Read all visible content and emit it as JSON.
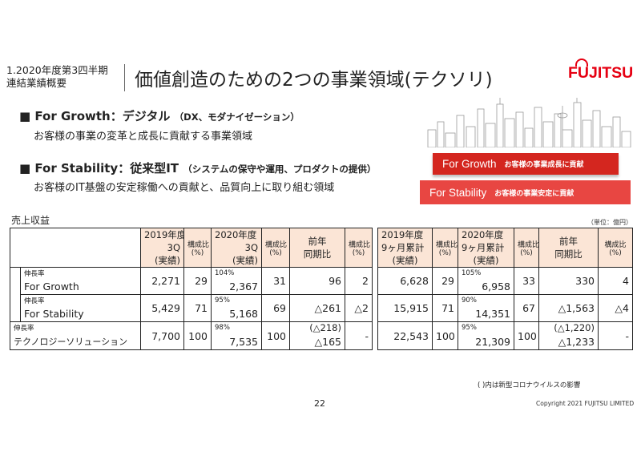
{
  "header": {
    "side_title_line1": "1.2020年度第3四半期",
    "side_title_line2": "連結業績概要",
    "main_title": "価値創造のための2つの事業領域(テクソリ)",
    "logo": "FUJITSU"
  },
  "growth": {
    "bullet": "■",
    "label": "For Growth：デジタル",
    "paren": "（DX、モダナイゼーション）",
    "desc": "お客様の事業の変革と成長に貢献する事業領域"
  },
  "stability": {
    "bullet": "■",
    "label": "For Stability：従来型IT",
    "paren": "（システムの保守や運用、プロダクトの提供）",
    "desc": "お客様のIT基盤の安定稼働への貢献と、品質向上に取り組む領域"
  },
  "bands": {
    "growth_main": "For Growth",
    "growth_sub": "お客様の事業成長に貢献",
    "stability_main": "For Stability",
    "stability_sub": "お客様の事業安定に貢献",
    "growth_color": "#d4261f",
    "stability_color": "#e84642"
  },
  "table": {
    "title": "売上収益",
    "unit": "（単位：億円）",
    "left": {
      "h2019a": "2019年度",
      "h2019b": "3Q",
      "h2019c": "(実績)",
      "h2020a": "2020年度",
      "h2020b": "3Q",
      "h2020c": "(実績)",
      "comp": "構成比",
      "pct": "(%)",
      "yoy1": "前年",
      "yoy2": "同期比"
    },
    "right": {
      "h2019a": "2019年度",
      "h2019b": "9ヶ月累計",
      "h2019c": "(実績)",
      "h2020a": "2020年度",
      "h2020b": "9ヶ月累計",
      "h2020c": "(実績)",
      "comp": "構成比",
      "pct": "(%)",
      "yoy1": "前年",
      "yoy2": "同期比"
    },
    "rows": {
      "growth": {
        "rate_label": "伸長率",
        "label": "For Growth",
        "l2019": "2,271",
        "l2019c": "29",
        "lrate": "104%",
        "l2020": "2,367",
        "l2020c": "31",
        "lyoy": "96",
        "lyoyc": "2",
        "r2019": "6,628",
        "r2019c": "29",
        "rrate": "105%",
        "r2020": "6,958",
        "r2020c": "33",
        "ryoy": "330",
        "ryoyc": "4"
      },
      "stability": {
        "rate_label": "伸長率",
        "label": "For Stability",
        "l2019": "5,429",
        "l2019c": "71",
        "lrate": "95%",
        "l2020": "5,168",
        "l2020c": "69",
        "lyoy": "△261",
        "lyoyc": "△2",
        "r2019": "15,915",
        "r2019c": "71",
        "rrate": "90%",
        "r2020": "14,351",
        "r2020c": "67",
        "ryoy": "△1,563",
        "ryoyc": "△4"
      },
      "total": {
        "rate_label": "伸長率",
        "label": "テクノロジーソリューション",
        "l2019": "7,700",
        "l2019c": "100",
        "lrate": "98%",
        "l2020": "7,535",
        "l2020c": "100",
        "lyoy_paren": "(△218)",
        "lyoy": "△165",
        "lyoyc": "-",
        "r2019": "22,543",
        "r2019c": "100",
        "rrate": "95%",
        "r2020": "21,309",
        "r2020c": "100",
        "ryoy_paren": "(△1,220)",
        "ryoy": "△1,233",
        "ryoyc": "-"
      }
    }
  },
  "footnote": "( )内は新型コロナウイルスの影響",
  "page_number": "22",
  "copyright": "Copyright 2021 FUJITSU LIMITED"
}
